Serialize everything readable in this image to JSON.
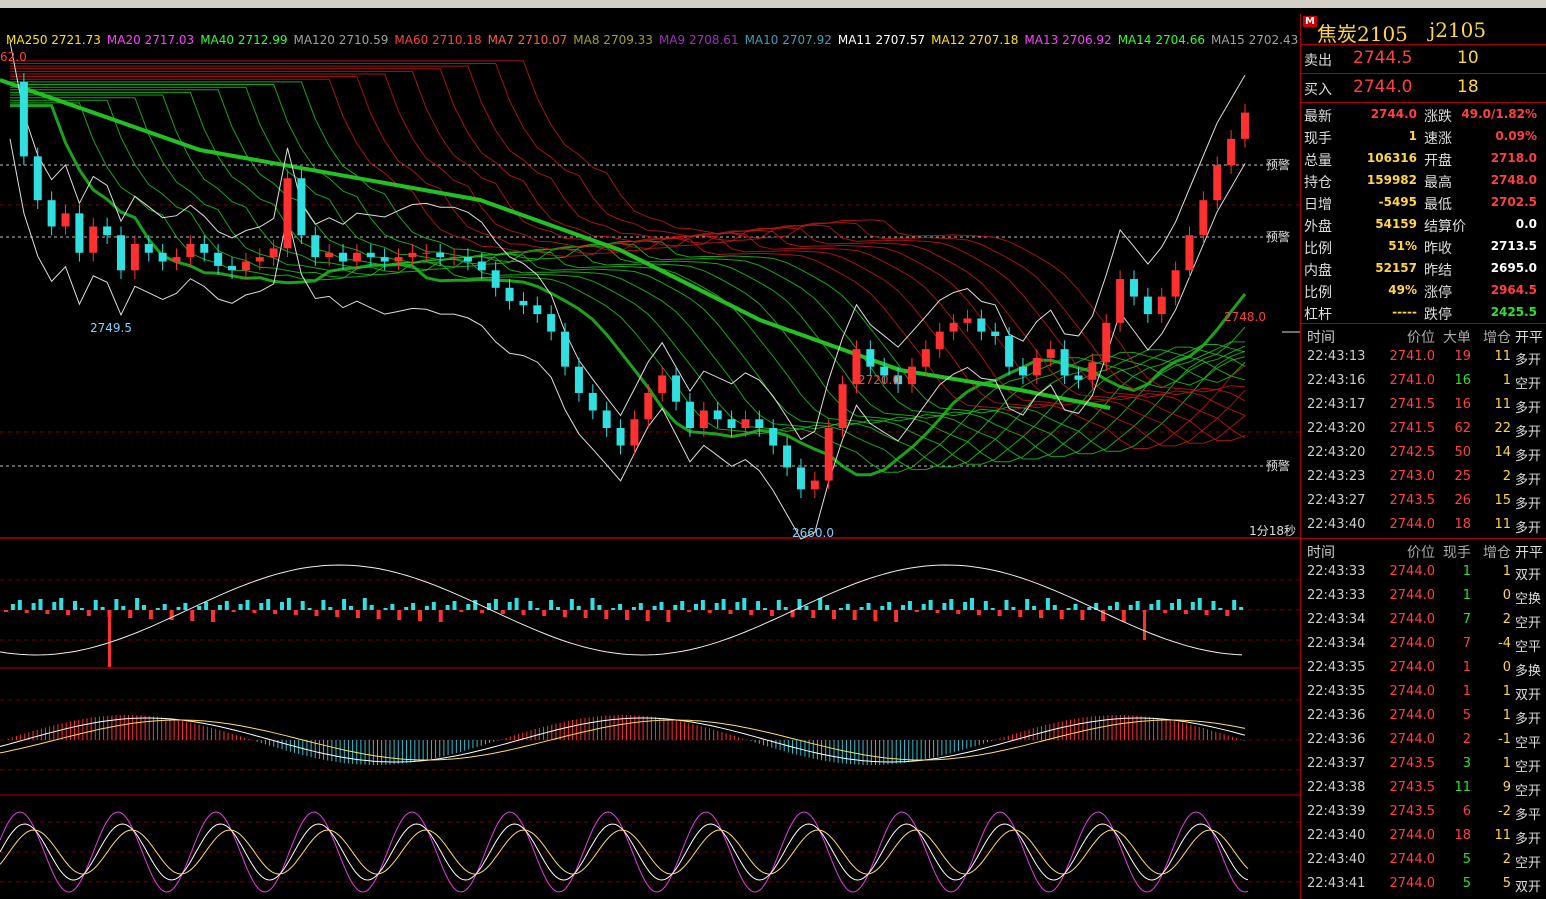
{
  "ma_legend": [
    {
      "label": "MA250 2721.73",
      "color": "#ffe400"
    },
    {
      "label": "MA20 2717.03",
      "color": "#ff40ff"
    },
    {
      "label": "MA40 2712.99",
      "color": "#30ff30"
    },
    {
      "label": "MA120 2710.59",
      "color": "#a0a0a0"
    },
    {
      "label": "MA60 2710.18",
      "color": "#ff4040"
    },
    {
      "label": "MA7 2710.07",
      "color": "#ff6040"
    },
    {
      "label": "MA8 2709.33",
      "color": "#a0a030"
    },
    {
      "label": "MA9 2708.61",
      "color": "#a030c0"
    },
    {
      "label": "MA10 2707.92",
      "color": "#40a0b0"
    },
    {
      "label": "MA11 2707.57",
      "color": "#ffffff"
    },
    {
      "label": "MA12 2707.18",
      "color": "#ffe400"
    },
    {
      "label": "MA13 2706.92",
      "color": "#ff40ff"
    },
    {
      "label": "MA14 2704.66",
      "color": "#30ff30"
    },
    {
      "label": "MA15 2702.43",
      "color": "#a0a0a0"
    }
  ],
  "main_chart": {
    "annotations": {
      "left_top": "62.0",
      "low_left": "2749.5",
      "peak_mid": "2720.0",
      "low_bottom": "2660.0",
      "high_right": "2748.0",
      "alert1": "预警",
      "alert2": "预警",
      "alert3": "预警",
      "timer": "1分18秒"
    },
    "price_series": [
      2755,
      2738,
      2728,
      2722,
      2725,
      2716,
      2722,
      2720,
      2712,
      2718,
      2716,
      2714,
      2715,
      2718,
      2716,
      2713,
      2712,
      2714,
      2715,
      2717,
      2733,
      2720,
      2715,
      2716,
      2714,
      2716,
      2715,
      2714,
      2715,
      2716,
      2716,
      2715,
      2715,
      2714,
      2712,
      2708,
      2705,
      2704,
      2702,
      2698,
      2690,
      2684,
      2680,
      2676,
      2672,
      2678,
      2684,
      2688,
      2682,
      2676,
      2680,
      2678,
      2676,
      2678,
      2676,
      2672,
      2667,
      2662,
      2664,
      2676,
      2686,
      2694,
      2690,
      2688,
      2686,
      2690,
      2694,
      2698,
      2700,
      2701,
      2698,
      2697,
      2690,
      2688,
      2692,
      2694,
      2688,
      2687,
      2691,
      2700,
      2710,
      2706,
      2702,
      2706,
      2712,
      2720,
      2728,
      2736,
      2742,
      2748
    ],
    "high_marker_value": 2748.0,
    "low_marker_value": 2660.0
  },
  "right_panel": {
    "marker": "M",
    "name": "焦炭2105",
    "code": "j2105",
    "ask_label": "卖出",
    "ask_price": "2744.5",
    "ask_vol": "10",
    "bid_label": "买入",
    "bid_price": "2744.0",
    "bid_vol": "18",
    "stats_left": [
      {
        "k": "最新",
        "v": "2744.0",
        "c": "red"
      },
      {
        "k": "现手",
        "v": "1",
        "c": "yellow"
      },
      {
        "k": "总量",
        "v": "106316",
        "c": "yellow"
      },
      {
        "k": "持仓",
        "v": "159982",
        "c": "yellow"
      },
      {
        "k": "日增",
        "v": "-5495",
        "c": "yellow"
      },
      {
        "k": "外盘",
        "v": "54159",
        "c": "yellow"
      },
      {
        "k": "比例",
        "v": "51%",
        "c": "yellow"
      },
      {
        "k": "内盘",
        "v": "52157",
        "c": "yellow"
      },
      {
        "k": "比例",
        "v": "49%",
        "c": "yellow"
      },
      {
        "k": "杠杆",
        "v": "-----",
        "c": "yellow"
      }
    ],
    "stats_right": [
      {
        "k": "涨跌",
        "v": "49.0/1.82%",
        "c": "red"
      },
      {
        "k": "速涨",
        "v": "0.09%",
        "c": "red"
      },
      {
        "k": "开盘",
        "v": "2718.0",
        "c": "red"
      },
      {
        "k": "最高",
        "v": "2748.0",
        "c": "red"
      },
      {
        "k": "最低",
        "v": "2702.5",
        "c": "red"
      },
      {
        "k": "结算价",
        "v": "0.0",
        "c": "white"
      },
      {
        "k": "昨收",
        "v": "2713.5",
        "c": "white"
      },
      {
        "k": "昨结",
        "v": "2695.0",
        "c": "white"
      },
      {
        "k": "涨停",
        "v": "2964.5",
        "c": "red"
      },
      {
        "k": "跌停",
        "v": "2425.5",
        "c": "green"
      }
    ],
    "big_ticks_header": [
      "时间",
      "价位",
      "大单",
      "增仓",
      "开平"
    ],
    "big_ticks": [
      [
        "22:43:13",
        "2741.0",
        "19",
        "11",
        "多开",
        "red",
        "red"
      ],
      [
        "22:43:16",
        "2741.0",
        "16",
        "1",
        "空开",
        "red",
        "green"
      ],
      [
        "22:43:17",
        "2741.5",
        "16",
        "11",
        "多开",
        "red",
        "red"
      ],
      [
        "22:43:20",
        "2741.5",
        "62",
        "22",
        "多开",
        "red",
        "red"
      ],
      [
        "22:43:20",
        "2742.5",
        "50",
        "14",
        "多开",
        "red",
        "red"
      ],
      [
        "22:43:23",
        "2743.0",
        "25",
        "2",
        "多开",
        "red",
        "red"
      ],
      [
        "22:43:27",
        "2743.5",
        "26",
        "15",
        "多开",
        "red",
        "red"
      ],
      [
        "22:43:40",
        "2744.0",
        "18",
        "11",
        "多开",
        "red",
        "red"
      ]
    ],
    "ticks_header": [
      "时间",
      "价位",
      "现手",
      "增仓",
      "开平"
    ],
    "ticks": [
      [
        "22:43:33",
        "2744.0",
        "1",
        "1",
        "双开",
        "red",
        "green"
      ],
      [
        "22:43:33",
        "2744.0",
        "1",
        "0",
        "空换",
        "red",
        "green"
      ],
      [
        "22:43:34",
        "2744.0",
        "7",
        "2",
        "空开",
        "red",
        "green"
      ],
      [
        "22:43:34",
        "2744.0",
        "7",
        "-4",
        "空平",
        "red",
        "red"
      ],
      [
        "22:43:35",
        "2744.0",
        "1",
        "0",
        "多换",
        "red",
        "red"
      ],
      [
        "22:43:35",
        "2744.0",
        "1",
        "1",
        "双开",
        "red",
        "red"
      ],
      [
        "22:43:36",
        "2744.0",
        "5",
        "1",
        "多开",
        "red",
        "red"
      ],
      [
        "22:43:36",
        "2744.0",
        "2",
        "-1",
        "空平",
        "red",
        "red"
      ],
      [
        "22:43:37",
        "2743.5",
        "3",
        "1",
        "空开",
        "red",
        "green"
      ],
      [
        "22:43:38",
        "2743.5",
        "11",
        "9",
        "空开",
        "red",
        "green"
      ],
      [
        "22:43:39",
        "2743.5",
        "6",
        "-2",
        "多平",
        "red",
        "red"
      ],
      [
        "22:43:40",
        "2744.0",
        "18",
        "11",
        "多开",
        "red",
        "red"
      ],
      [
        "22:43:40",
        "2744.0",
        "5",
        "2",
        "空开",
        "red",
        "green"
      ],
      [
        "22:43:41",
        "2744.0",
        "5",
        "5",
        "双开",
        "red",
        "green"
      ]
    ]
  }
}
